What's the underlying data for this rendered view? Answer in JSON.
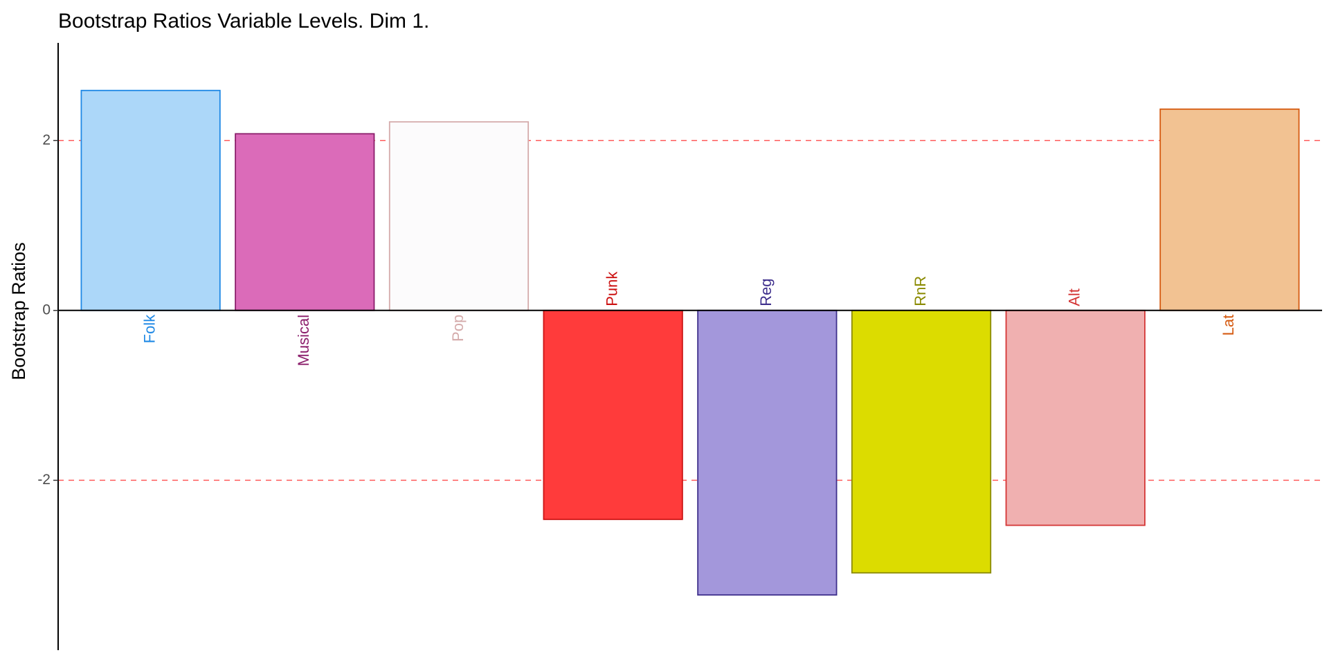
{
  "chart_data": {
    "type": "bar",
    "title": "Bootstrap Ratios Variable Levels. Dim 1.",
    "xlabel": "",
    "ylabel": "Bootstrap Ratios",
    "ylim": [
      -4,
      3.15
    ],
    "yticks": [
      -2,
      0,
      2
    ],
    "threshold_lines": [
      2,
      -2
    ],
    "threshold_color": "#ff5a5a",
    "grid": false,
    "categories": [
      "Folk",
      "Musical",
      "Pop",
      "Punk",
      "Reg",
      "RnR",
      "Alt",
      "Lat"
    ],
    "values": [
      2.59,
      2.08,
      2.22,
      -2.46,
      -3.35,
      -3.09,
      -2.53,
      2.37
    ],
    "fill_colors": [
      "#acd7f9",
      "#db6bb9",
      "#fcfbfc",
      "#ff3b3b",
      "#a397db",
      "#dcdc00",
      "#f0b0b0",
      "#f2c292"
    ],
    "border_colors": [
      "#1e88e5",
      "#8b1e6b",
      "#d4aaaa",
      "#cc1111",
      "#3e2f8c",
      "#8a8a00",
      "#d43535",
      "#d55a10"
    ],
    "label_colors": [
      "#1e88e5",
      "#8b1e6b",
      "#d4aaaa",
      "#cc1111",
      "#3e2f8c",
      "#8a8a00",
      "#d43535",
      "#d55a10"
    ]
  }
}
